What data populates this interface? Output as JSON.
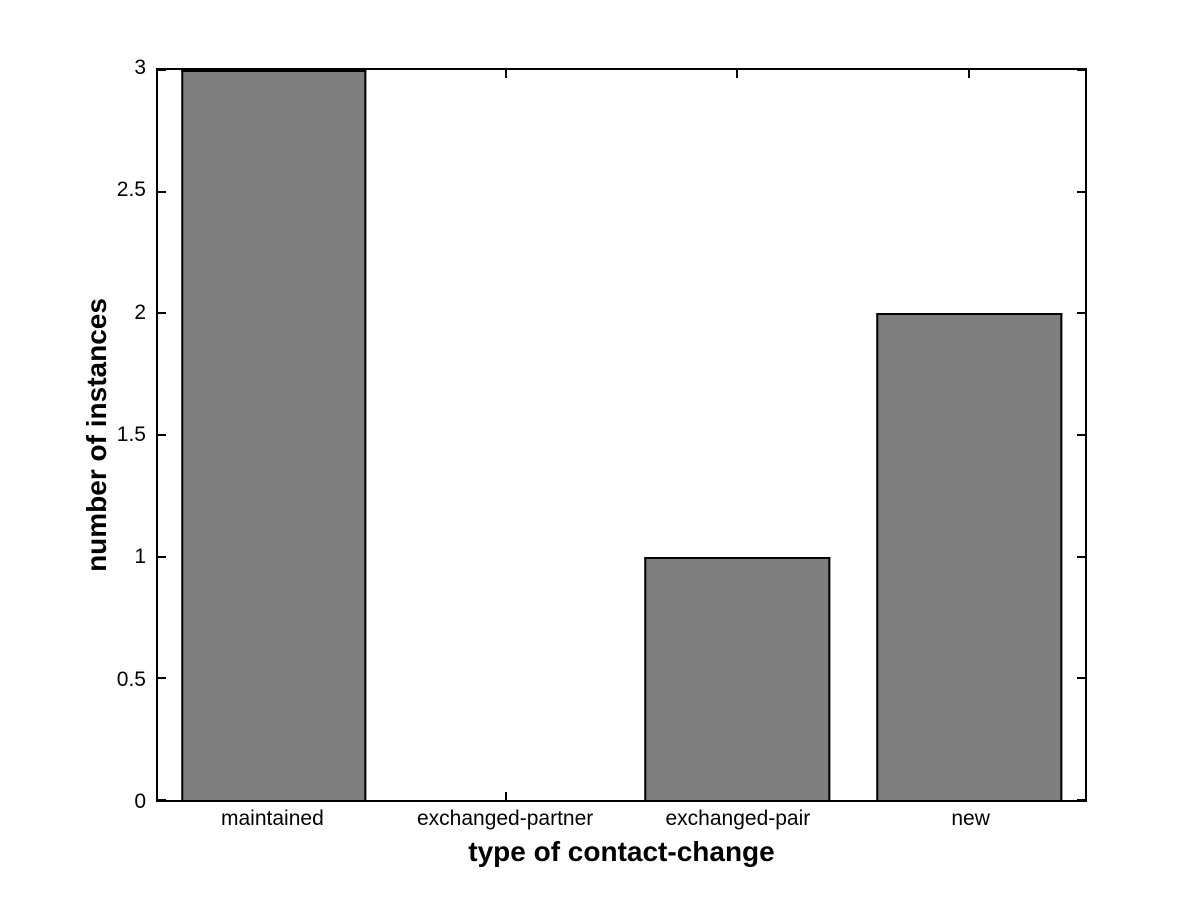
{
  "figure": {
    "background": "#ffffff"
  },
  "chart_data": {
    "type": "bar",
    "title": "",
    "xlabel": "type of contact-change",
    "ylabel": "number of instances",
    "categories": [
      "maintained",
      "exchanged-partner",
      "exchanged-pair",
      "new"
    ],
    "values": [
      3,
      0,
      1,
      2
    ],
    "ylim": [
      0,
      3
    ],
    "yticks": [
      0,
      0.5,
      1,
      1.5,
      2,
      2.5,
      3
    ],
    "ytick_labels": [
      "0",
      "0.5",
      "1",
      "1.5",
      "2",
      "2.5",
      "3"
    ],
    "bar_width_fraction": 0.8,
    "bar_color": "#7f7f7f",
    "bar_edge_color": "#000000",
    "axis_color": "#000000",
    "grid": false,
    "legend_position": "none"
  }
}
